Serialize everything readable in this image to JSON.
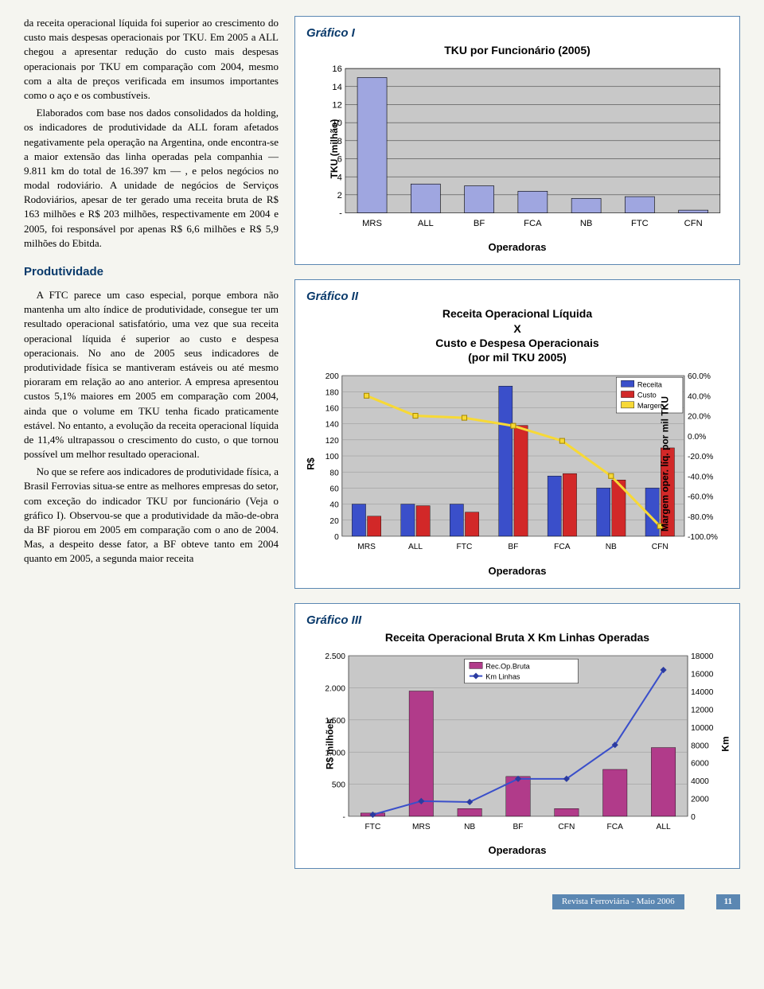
{
  "text": {
    "p1": "da receita operacional líquida foi superior ao crescimento do custo mais despesas operacionais por TKU. Em 2005 a ALL chegou a apresentar redução do custo mais despesas operacionais por TKU em comparação com 2004, mesmo com a alta de preços verificada em insumos importantes como o aço e os combustíveis.",
    "p2": "Elaborados com base nos dados consolidados da holding, os indicadores de produtividade da ALL foram afetados negativamente pela operação na Argentina, onde encontra-se a maior extensão das linha operadas pela companhia — 9.811 km do total de 16.397 km — , e pelos negócios no modal rodoviário. A unidade de negócios de Serviços Rodoviários, apesar de ter gerado uma receita bruta de R$ 163 milhões e R$ 203 milhões, respectivamente em 2004 e 2005, foi responsável por apenas R$ 6,6 milhões e R$ 5,9 milhões do Ebitda.",
    "head1": "Produtividade",
    "p3": "A FTC parece um caso especial, porque embora não mantenha um alto índice de produtividade, consegue ter um resultado operacional satisfatório, uma vez que sua receita operacional líquida é superior ao custo e despesa operacionais. No ano de 2005 seus indicadores de produtividade física se mantiveram estáveis ou até mesmo pioraram em relação ao ano anterior. A empresa apresentou custos 5,1% maiores em 2005 em comparação com 2004, ainda que o volume em TKU tenha ficado praticamente estável. No entanto, a evolução da receita operacional líquida de 11,4% ultrapassou o crescimento do custo, o que tornou possível um melhor resultado operacional.",
    "p4": "No que se refere aos indicadores de produtividade física, a Brasil Ferrovias situa-se entre as melhores empresas do setor, com exceção do indicador TKU por funcionário (Veja o gráfico I). Observou-se que a produtividade da mão-de-obra da BF piorou em 2005 em comparação com o ano de 2004. Mas, a despeito desse fator, a BF obteve tanto em 2004 quanto em 2005, a segunda maior receita"
  },
  "chart1": {
    "label": "Gráfico I",
    "title": "TKU por Funcionário (2005)",
    "ylabel": "TKU (milhão)",
    "xlabel": "Operadoras",
    "categories": [
      "MRS",
      "ALL",
      "BF",
      "FCA",
      "NB",
      "FTC",
      "CFN"
    ],
    "values": [
      15,
      3.2,
      3.0,
      2.4,
      1.6,
      1.8,
      0.3
    ],
    "ymax": 16,
    "ytick_step": 2,
    "bar_color": "#9fa6e0",
    "bar_edge": "#000",
    "plot_bg": "#c8c8c8",
    "grid_color": "#000",
    "tick_fontsize": 11
  },
  "chart2": {
    "label": "Gráfico II",
    "title_l1": "Receita Operacional Líquida",
    "title_l2": "X",
    "title_l3": "Custo e Despesa Operacionais",
    "title_l4": "(por mil TKU 2005)",
    "ylabel": "R$",
    "y2label": "Margem oper. líq. por mil TKU",
    "xlabel": "Operadoras",
    "categories": [
      "MRS",
      "ALL",
      "FTC",
      "BF",
      "FCA",
      "NB",
      "CFN"
    ],
    "receita": [
      40,
      40,
      40,
      187,
      75,
      60,
      60
    ],
    "custo": [
      25,
      38,
      30,
      138,
      78,
      70,
      110
    ],
    "margem_pct": [
      40,
      20,
      18,
      10,
      -5,
      -40,
      -90
    ],
    "ymax": 200,
    "ytick_step": 20,
    "y2min": -100,
    "y2max": 60,
    "y2tick_step": 20,
    "receita_color": "#3a4fca",
    "custo_color": "#d22828",
    "margem_color": "#f7d936",
    "plot_bg": "#c8c8c8",
    "grid_color": "#888",
    "tick_fontsize": 10,
    "legend": [
      "Receita",
      "Custo",
      "Margem"
    ]
  },
  "chart3": {
    "label": "Gráfico III",
    "title": "Receita Operacional Bruta X Km Linhas Operadas",
    "ylabel": "R$ milhões",
    "y2label": "Km",
    "xlabel": "Operadoras",
    "categories": [
      "FTC",
      "MRS",
      "NB",
      "BF",
      "CFN",
      "FCA",
      "ALL"
    ],
    "rec_op_bruta": [
      50,
      1950,
      120,
      620,
      120,
      730,
      1070
    ],
    "km_linhas": [
      180,
      1700,
      1600,
      4200,
      4200,
      8000,
      16400
    ],
    "ymax": 2500,
    "ytick_step": 500,
    "y2max": 18000,
    "y2tick_step": 2000,
    "bar_color": "#b13b8a",
    "line_color": "#3a4fca",
    "marker_color": "#2b3ba0",
    "plot_bg": "#c8c8c8",
    "grid_color": "#888",
    "tick_fontsize": 10,
    "legend": [
      "Rec.Op.Bruta",
      "Km Linhas"
    ]
  },
  "footer": {
    "src": "Revista Ferroviária - Maio 2006",
    "page": "11"
  }
}
